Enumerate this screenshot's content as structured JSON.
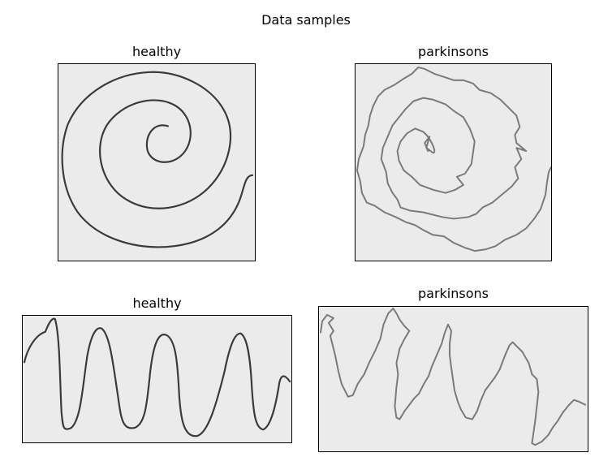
{
  "figure": {
    "suptitle": "Data samples",
    "panels": [
      {
        "label": "healthy",
        "kind": "spiral"
      },
      {
        "label": "parkinsons",
        "kind": "spiral"
      },
      {
        "label": "healthy",
        "kind": "wave"
      },
      {
        "label": "parkinsons",
        "kind": "wave"
      }
    ]
  },
  "colors": {
    "paper": "#ebebeb",
    "healthy_ink": "#3a3a3a",
    "parkinsons_ink": "#7a7a7a"
  }
}
